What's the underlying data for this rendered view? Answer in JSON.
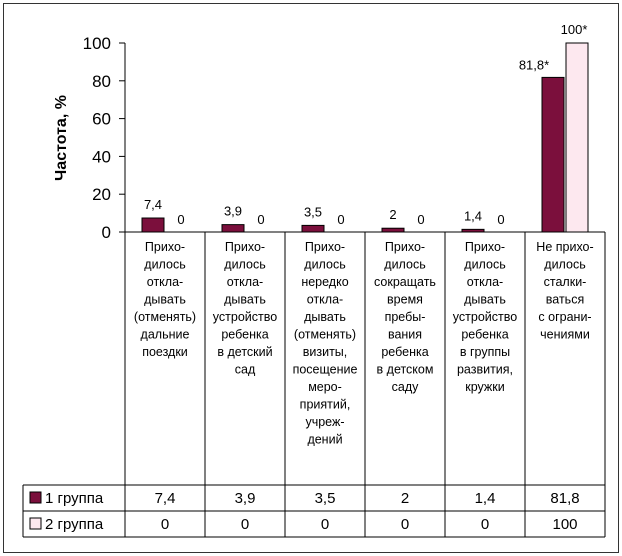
{
  "chart_data": {
    "type": "bar",
    "ylabel": "Частота, %",
    "ylim": [
      0,
      100
    ],
    "yticks": [
      0,
      20,
      40,
      60,
      80,
      100
    ],
    "categories": [
      [
        "Прихо-",
        "дилось",
        "откла-",
        "дывать",
        "(отменять)",
        "дальние",
        "поездки"
      ],
      [
        "Прихо-",
        "дилось",
        "откла-",
        "дывать",
        "устройство",
        "ребенка",
        "в детский",
        "сад"
      ],
      [
        "Прихо-",
        "дилось",
        "нередко",
        "откла-",
        "дывать",
        "(отменять)",
        "визиты,",
        "посещение",
        "меро-",
        "приятий,",
        "учреж-",
        "дений"
      ],
      [
        "Прихо-",
        "дилось",
        "сокращать",
        "время",
        "пребы-",
        "вания",
        "ребенка",
        "в детском",
        "саду"
      ],
      [
        "Прихо-",
        "дилось",
        "откла-",
        "дывать",
        "устройство",
        "ребенка",
        "в группы",
        "развития,",
        "кружки"
      ],
      [
        "Не прихо-",
        "дилось",
        "сталки-",
        "ваться",
        "с ограни-",
        "чениями"
      ]
    ],
    "series": [
      {
        "name": "1 группа",
        "color": "#7b0f3c",
        "values": [
          7.4,
          3.9,
          3.5,
          2,
          1.4,
          81.8
        ],
        "labels": [
          "7,4",
          "3,9",
          "3,5",
          "2",
          "1,4",
          "81,8*"
        ],
        "table_values": [
          "7,4",
          "3,9",
          "3,5",
          "2",
          "1,4",
          "81,8"
        ]
      },
      {
        "name": "2 группа",
        "color": "#fde8ef",
        "values": [
          0,
          0,
          0,
          0,
          0,
          100
        ],
        "labels": [
          "0",
          "0",
          "0",
          "0",
          "0",
          "100*"
        ],
        "table_values": [
          "0",
          "0",
          "0",
          "0",
          "0",
          "100"
        ]
      }
    ],
    "legend": "data-table"
  }
}
